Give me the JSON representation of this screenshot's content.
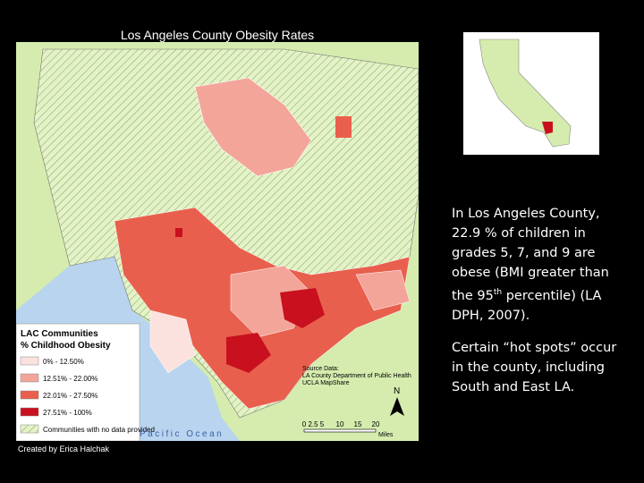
{
  "title": "Los Angeles County Obesity Rates",
  "map": {
    "legend": {
      "title": "LAC Communities",
      "subtitle": "% Childhood Obesity",
      "items": [
        {
          "label": "0% - 12.50%",
          "color": "#fbe2df"
        },
        {
          "label": "12.51% - 22.00%",
          "color": "#f3a59a"
        },
        {
          "label": "22.01% - 27.50%",
          "color": "#e8604d"
        },
        {
          "label": "27.51% - 100%",
          "color": "#c8101e"
        }
      ],
      "no_data": "Communities with no data provided"
    },
    "source": [
      "Source Data:",
      "LA County Department of Public Health",
      "UCLA MapShare"
    ],
    "north": "N",
    "ocean": "Pacific Ocean",
    "scale": {
      "ticks": [
        "0",
        "2.5",
        "5",
        "10",
        "15",
        "20"
      ],
      "unit": "Miles"
    }
  },
  "credit": "Created by Erica Halchak",
  "paragraphs": [
    {
      "before": "In Los Angeles County, 22.9 % of children in grades 5, 7, and 9 are obese (BMI greater than the 95",
      "sup": "th",
      "after": " percentile)  (LA DPH, 2007)."
    },
    {
      "text": "Certain “hot spots” occur in the county, including South and East LA."
    }
  ]
}
